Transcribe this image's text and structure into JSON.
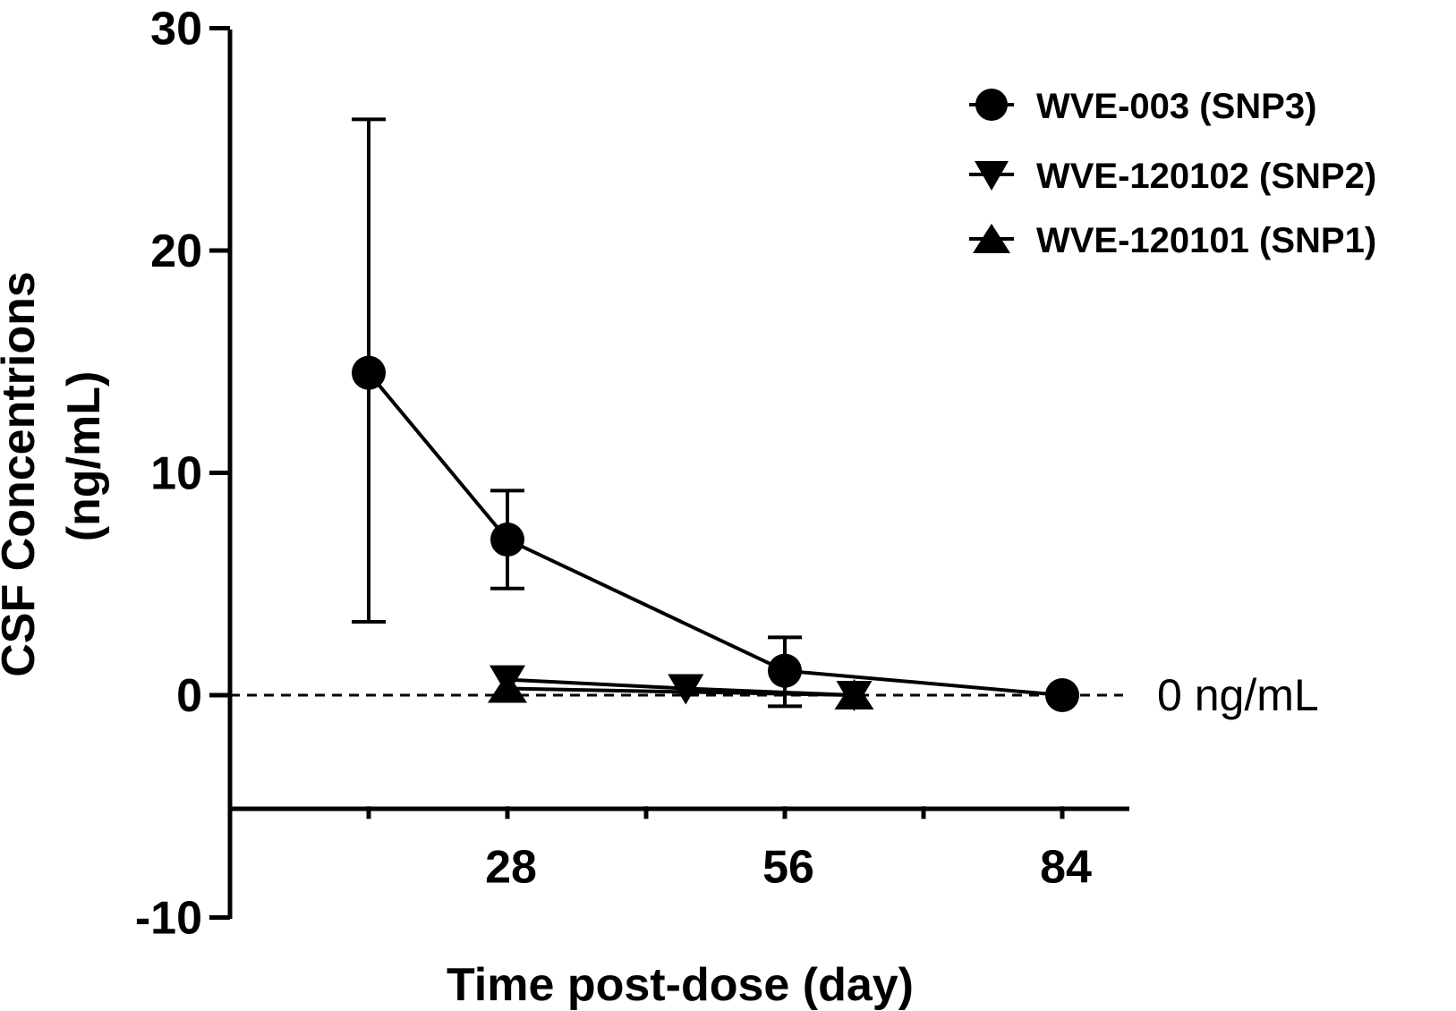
{
  "chart_data": {
    "type": "line",
    "xlabel": "Time post-dose (day)",
    "ylabel_line1": "CSF Concentrions",
    "ylabel_line2": "(ng/mL)",
    "ylim": [
      -10,
      30
    ],
    "xlim": [
      0,
      90
    ],
    "y_ticks": [
      {
        "value": 30,
        "label": "30"
      },
      {
        "value": 20,
        "label": "20"
      },
      {
        "value": 10,
        "label": "10"
      },
      {
        "value": 0,
        "label": "0"
      },
      {
        "value": -10,
        "label": "-10"
      }
    ],
    "x_ticks": [
      {
        "value": 28,
        "label": "28"
      },
      {
        "value": 56,
        "label": "56"
      },
      {
        "value": 84,
        "label": "84"
      }
    ],
    "x_minor_ticks": [
      14,
      42,
      70
    ],
    "x_axis_at": -5,
    "reference_line": {
      "value": 0,
      "label": "0 ng/mL"
    },
    "series": [
      {
        "name": "WVE-003 (SNP3)",
        "marker": "circle",
        "x": [
          14,
          28,
          56,
          84
        ],
        "y": [
          14.5,
          7.0,
          1.1,
          0
        ],
        "err_low": [
          3.3,
          4.8,
          -0.5,
          0
        ],
        "err_high": [
          25.9,
          9.2,
          2.6,
          0
        ]
      },
      {
        "name": "WVE-120102 (SNP2)",
        "marker": "triangle-down",
        "x": [
          28,
          46,
          63
        ],
        "y": [
          0.7,
          0.3,
          0
        ],
        "err_low": [
          null,
          null,
          null
        ],
        "err_high": [
          null,
          null,
          null
        ]
      },
      {
        "name": "WVE-120101 (SNP1)",
        "marker": "triangle-up",
        "x": [
          28,
          63
        ],
        "y": [
          0.3,
          0
        ],
        "err_low": [
          null,
          null
        ],
        "err_high": [
          null,
          null
        ]
      }
    ],
    "legend_position": "top-right"
  }
}
